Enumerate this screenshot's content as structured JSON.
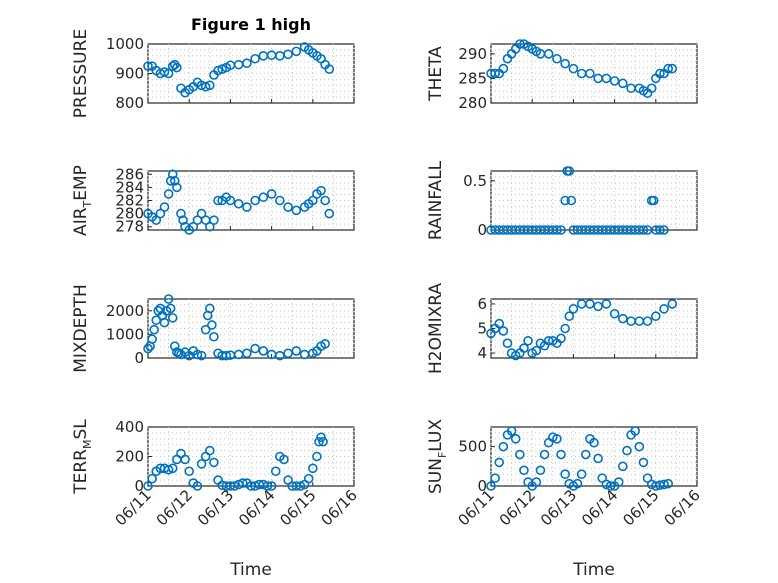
{
  "title": "Figure 1 high",
  "colors": {
    "marker": "#0072BD",
    "axis": "#262626",
    "grid": "#c8c8c8"
  },
  "chart_data": [
    {
      "type": "scatter",
      "marker": "circle-open",
      "ylabel": "PRESSURE",
      "ylim": [
        800,
        1000
      ],
      "yticks": [
        800,
        900,
        1000
      ],
      "xlim": [
        0,
        5
      ],
      "xticks": [
        "06/11",
        "06/12",
        "06/13",
        "06/14",
        "06/15",
        "06/16"
      ],
      "x": [
        0,
        0.1,
        0.2,
        0.3,
        0.4,
        0.5,
        0.6,
        0.65,
        0.7,
        0.8,
        0.9,
        1.0,
        1.1,
        1.2,
        1.3,
        1.4,
        1.5,
        1.6,
        1.7,
        1.8,
        1.9,
        2.0,
        2.2,
        2.4,
        2.6,
        2.8,
        3.0,
        3.2,
        3.4,
        3.6,
        3.8,
        3.9,
        4.0,
        4.1,
        4.2,
        4.3,
        4.4
      ],
      "y": [
        925,
        925,
        910,
        900,
        905,
        900,
        925,
        930,
        920,
        850,
        835,
        845,
        855,
        870,
        860,
        855,
        860,
        895,
        910,
        915,
        920,
        928,
        930,
        935,
        950,
        960,
        962,
        960,
        965,
        975,
        990,
        980,
        970,
        960,
        950,
        930,
        915
      ]
    },
    {
      "type": "scatter",
      "marker": "circle-open",
      "ylabel": "THETA",
      "ylim": [
        280,
        292
      ],
      "yticks": [
        280,
        285,
        290
      ],
      "xlim": [
        0,
        5
      ],
      "xticks": [
        "06/11",
        "06/12",
        "06/13",
        "06/14",
        "06/15",
        "06/16"
      ],
      "x": [
        0,
        0.1,
        0.2,
        0.3,
        0.4,
        0.5,
        0.6,
        0.7,
        0.8,
        0.9,
        1.0,
        1.1,
        1.2,
        1.4,
        1.6,
        1.8,
        2.0,
        2.2,
        2.4,
        2.6,
        2.8,
        3.0,
        3.2,
        3.4,
        3.6,
        3.7,
        3.8,
        3.9,
        4.0,
        4.1,
        4.2,
        4.3,
        4.4
      ],
      "y": [
        286,
        286,
        286,
        287,
        289,
        290,
        291,
        292,
        292,
        291.5,
        291,
        290.5,
        290,
        290,
        289,
        288,
        287,
        286,
        286,
        285,
        285,
        284.5,
        284,
        283,
        283,
        282.5,
        282,
        283,
        285,
        286,
        286,
        287,
        287
      ]
    },
    {
      "type": "scatter",
      "marker": "circle-open",
      "ylabel": "AIR_TEMP",
      "ylim": [
        277.5,
        286.5
      ],
      "yticks": [
        278,
        280,
        282,
        284,
        286
      ],
      "xlim": [
        0,
        5
      ],
      "xticks": [
        "06/11",
        "06/12",
        "06/13",
        "06/14",
        "06/15",
        "06/16"
      ],
      "x": [
        0,
        0.1,
        0.2,
        0.3,
        0.4,
        0.5,
        0.55,
        0.6,
        0.65,
        0.7,
        0.8,
        0.85,
        0.9,
        1.0,
        1.1,
        1.2,
        1.3,
        1.4,
        1.5,
        1.6,
        1.7,
        1.8,
        1.9,
        2.0,
        2.2,
        2.4,
        2.6,
        2.8,
        3.0,
        3.2,
        3.4,
        3.6,
        3.8,
        3.9,
        4.0,
        4.1,
        4.2,
        4.3,
        4.4
      ],
      "y": [
        280,
        279.5,
        279,
        280,
        281,
        283,
        285,
        286,
        285,
        284,
        280,
        279,
        278,
        277.5,
        278,
        279,
        280,
        279,
        278,
        279,
        282,
        282,
        282.5,
        282,
        281.5,
        281,
        282,
        282.5,
        283,
        282,
        281,
        280.5,
        281,
        281.5,
        282,
        283,
        283.5,
        282,
        280
      ]
    },
    {
      "type": "scatter",
      "marker": "circle-open",
      "ylabel": "RAINFALL",
      "ylim": [
        0,
        0.6
      ],
      "yticks": [
        0,
        0.5
      ],
      "xlim": [
        0,
        5
      ],
      "xticks": [
        "06/11",
        "06/12",
        "06/13",
        "06/14",
        "06/15",
        "06/16"
      ],
      "x": [
        0,
        0.1,
        0.2,
        0.3,
        0.4,
        0.5,
        0.6,
        0.7,
        0.8,
        0.9,
        1.0,
        1.1,
        1.2,
        1.3,
        1.4,
        1.5,
        1.6,
        1.7,
        1.8,
        1.85,
        1.9,
        1.95,
        2.0,
        2.1,
        2.2,
        2.3,
        2.4,
        2.5,
        2.6,
        2.7,
        2.8,
        2.9,
        3.0,
        3.1,
        3.2,
        3.3,
        3.4,
        3.5,
        3.6,
        3.7,
        3.8,
        3.9,
        3.95,
        4.0,
        4.1,
        4.2
      ],
      "y": [
        0,
        0,
        0,
        0,
        0,
        0,
        0,
        0,
        0,
        0,
        0,
        0,
        0,
        0,
        0,
        0,
        0,
        0,
        0.3,
        0.6,
        0.6,
        0.3,
        0,
        0,
        0,
        0,
        0,
        0,
        0,
        0,
        0,
        0,
        0,
        0,
        0,
        0,
        0,
        0,
        0,
        0,
        0,
        0.3,
        0.3,
        0,
        0,
        0
      ]
    },
    {
      "type": "scatter",
      "marker": "circle-open",
      "ylabel": "MIXDEPTH",
      "ylim": [
        0,
        2500
      ],
      "yticks": [
        0,
        1000,
        2000
      ],
      "xlim": [
        0,
        5
      ],
      "xticks": [
        "06/11",
        "06/12",
        "06/13",
        "06/14",
        "06/15",
        "06/16"
      ],
      "x": [
        0,
        0.05,
        0.1,
        0.15,
        0.2,
        0.25,
        0.3,
        0.35,
        0.4,
        0.45,
        0.5,
        0.55,
        0.6,
        0.65,
        0.7,
        0.75,
        0.8,
        0.9,
        1.0,
        1.1,
        1.2,
        1.3,
        1.4,
        1.45,
        1.5,
        1.55,
        1.6,
        1.7,
        1.8,
        1.9,
        2.0,
        2.2,
        2.4,
        2.6,
        2.8,
        3.0,
        3.2,
        3.4,
        3.6,
        3.8,
        4.0,
        4.1,
        4.2,
        4.3
      ],
      "y": [
        400,
        500,
        800,
        1200,
        1600,
        2000,
        2100,
        1800,
        1500,
        2000,
        2500,
        2100,
        1700,
        500,
        250,
        200,
        150,
        250,
        100,
        300,
        150,
        100,
        1200,
        1800,
        2100,
        1400,
        900,
        200,
        100,
        100,
        120,
        150,
        200,
        400,
        300,
        150,
        100,
        200,
        300,
        150,
        200,
        300,
        500,
        600
      ]
    },
    {
      "type": "scatter",
      "marker": "circle-open",
      "ylabel": "H2OMIXRA",
      "ylim": [
        3.8,
        6.2
      ],
      "yticks": [
        4,
        5,
        6
      ],
      "xlim": [
        0,
        5
      ],
      "xticks": [
        "06/11",
        "06/12",
        "06/13",
        "06/14",
        "06/15",
        "06/16"
      ],
      "x": [
        0,
        0.1,
        0.2,
        0.3,
        0.4,
        0.5,
        0.6,
        0.7,
        0.8,
        0.9,
        1.0,
        1.1,
        1.2,
        1.3,
        1.4,
        1.5,
        1.6,
        1.7,
        1.8,
        1.9,
        2.0,
        2.2,
        2.4,
        2.6,
        2.8,
        3.0,
        3.2,
        3.4,
        3.6,
        3.8,
        4.0,
        4.2,
        4.4
      ],
      "y": [
        4.8,
        5.0,
        5.2,
        4.9,
        4.4,
        4.0,
        3.9,
        4.0,
        4.2,
        4.5,
        4.0,
        4.1,
        4.4,
        4.3,
        4.5,
        4.5,
        4.4,
        4.6,
        5.0,
        5.5,
        5.8,
        6.0,
        6.0,
        5.9,
        6.0,
        5.6,
        5.4,
        5.3,
        5.3,
        5.3,
        5.5,
        5.8,
        6.0
      ]
    },
    {
      "type": "scatter",
      "marker": "circle-open",
      "ylabel": "TERR_MSL",
      "ylim": [
        0,
        400
      ],
      "yticks": [
        0,
        200,
        400
      ],
      "xlim": [
        0,
        5
      ],
      "xticks": [
        "06/11",
        "06/12",
        "06/13",
        "06/14",
        "06/15",
        "06/16"
      ],
      "x": [
        0,
        0.1,
        0.2,
        0.3,
        0.4,
        0.5,
        0.6,
        0.7,
        0.8,
        0.9,
        1.0,
        1.1,
        1.2,
        1.3,
        1.4,
        1.5,
        1.6,
        1.7,
        1.8,
        1.9,
        2.0,
        2.1,
        2.2,
        2.3,
        2.4,
        2.5,
        2.6,
        2.7,
        2.8,
        2.9,
        3.0,
        3.1,
        3.2,
        3.3,
        3.4,
        3.5,
        3.6,
        3.7,
        3.8,
        3.9,
        4.0,
        4.1,
        4.15,
        4.2,
        4.25
      ],
      "y": [
        0,
        50,
        100,
        120,
        120,
        110,
        120,
        180,
        220,
        180,
        100,
        20,
        0,
        150,
        200,
        240,
        160,
        40,
        5,
        0,
        0,
        0,
        10,
        20,
        20,
        0,
        0,
        10,
        10,
        0,
        0,
        100,
        200,
        180,
        40,
        0,
        0,
        0,
        10,
        50,
        120,
        200,
        300,
        330,
        300
      ]
    },
    {
      "type": "scatter",
      "marker": "circle-open",
      "ylabel": "SUN_FLUX",
      "ylim": [
        0,
        750
      ],
      "yticks": [
        0,
        500
      ],
      "xlim": [
        0,
        5
      ],
      "xticks": [
        "06/11",
        "06/12",
        "06/13",
        "06/14",
        "06/15",
        "06/16"
      ],
      "x": [
        0,
        0.1,
        0.2,
        0.3,
        0.4,
        0.5,
        0.6,
        0.7,
        0.8,
        0.9,
        1.0,
        1.1,
        1.2,
        1.3,
        1.4,
        1.5,
        1.6,
        1.7,
        1.8,
        1.9,
        2.0,
        2.1,
        2.2,
        2.3,
        2.4,
        2.5,
        2.6,
        2.7,
        2.8,
        2.9,
        3.0,
        3.1,
        3.2,
        3.3,
        3.4,
        3.5,
        3.6,
        3.7,
        3.8,
        3.9,
        4.0,
        4.1,
        4.2,
        4.3
      ],
      "y": [
        0,
        100,
        300,
        500,
        650,
        700,
        600,
        400,
        200,
        50,
        0,
        50,
        200,
        400,
        550,
        620,
        600,
        400,
        150,
        30,
        0,
        30,
        150,
        400,
        600,
        550,
        350,
        100,
        20,
        0,
        0,
        50,
        250,
        450,
        650,
        700,
        500,
        300,
        100,
        20,
        0,
        10,
        20,
        30
      ]
    }
  ],
  "xlabels": [
    "Time",
    "Time"
  ]
}
